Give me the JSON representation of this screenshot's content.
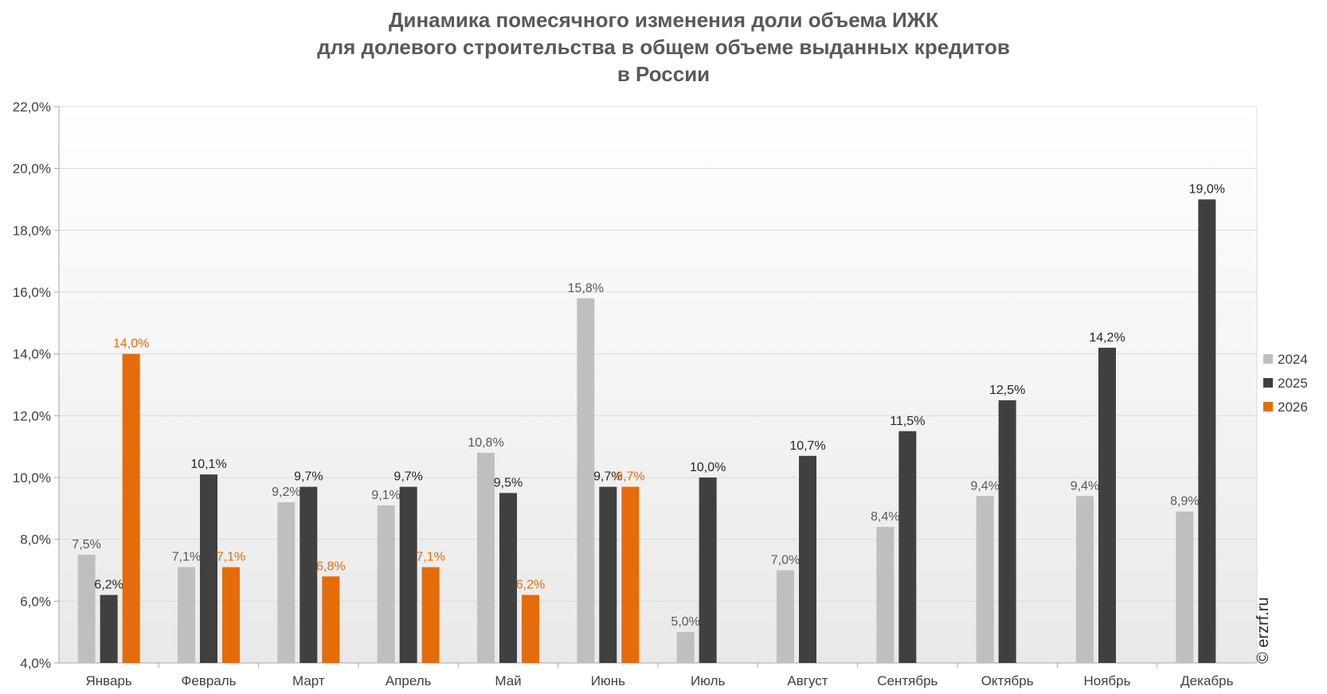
{
  "chart_data": {
    "type": "bar",
    "title_lines": [
      "Динамика помесячного изменения доли объема ИЖК",
      "для долевого строительства в общем объеме выданных кредитов",
      "в России"
    ],
    "categories": [
      "Январь",
      "Февраль",
      "Март",
      "Апрель",
      "Май",
      "Июнь",
      "Июль",
      "Август",
      "Сентябрь",
      "Октябрь",
      "Ноябрь",
      "Декабрь"
    ],
    "series": [
      {
        "name": "2024",
        "color": "#bfbfbf",
        "label_color": "#595959",
        "values": [
          7.5,
          7.1,
          9.2,
          9.1,
          10.8,
          15.8,
          5.0,
          7.0,
          8.4,
          9.4,
          9.4,
          8.9
        ],
        "labels": [
          "7,5%",
          "7,1%",
          "9,2%",
          "9,1%",
          "10,8%",
          "15,8%",
          "5,0%",
          "7,0%",
          "8,4%",
          "9,4%",
          "9,4%",
          "8,9%"
        ]
      },
      {
        "name": "2025",
        "color": "#404040",
        "label_color": "#262626",
        "values": [
          6.2,
          10.1,
          9.7,
          9.7,
          9.5,
          9.7,
          10.0,
          10.7,
          11.5,
          12.5,
          14.2,
          19.0
        ],
        "labels": [
          "6,2%",
          "10,1%",
          "9,7%",
          "9,7%",
          "9,5%",
          "9,7%",
          "10,0%",
          "10,7%",
          "11,5%",
          "12,5%",
          "14,2%",
          "19,0%"
        ]
      },
      {
        "name": "2026",
        "color": "#e46c0a",
        "label_color": "#e46c0a",
        "values": [
          14.0,
          7.1,
          6.8,
          7.1,
          6.2,
          9.7,
          null,
          null,
          null,
          null,
          null,
          null
        ],
        "labels": [
          "14,0%",
          "7,1%",
          "6,8%",
          "7,1%",
          "6,2%",
          "9,7%",
          null,
          null,
          null,
          null,
          null,
          null
        ]
      }
    ],
    "ylim": [
      4.0,
      22.0
    ],
    "ytick_step": 2.0,
    "yticks_labels": [
      "4,0%",
      "6,0%",
      "8,0%",
      "10,0%",
      "12,0%",
      "14,0%",
      "16,0%",
      "18,0%",
      "20,0%",
      "22,0%"
    ],
    "grid": true,
    "legend_position": "right",
    "watermark": "© erzrf.ru"
  }
}
